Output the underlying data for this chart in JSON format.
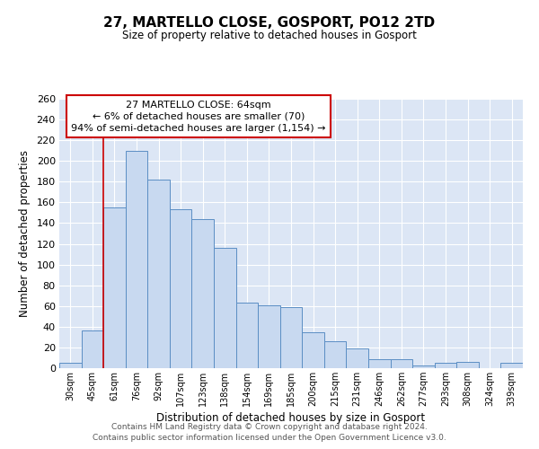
{
  "title": "27, MARTELLO CLOSE, GOSPORT, PO12 2TD",
  "subtitle": "Size of property relative to detached houses in Gosport",
  "xlabel": "Distribution of detached houses by size in Gosport",
  "ylabel": "Number of detached properties",
  "bar_labels": [
    "30sqm",
    "45sqm",
    "61sqm",
    "76sqm",
    "92sqm",
    "107sqm",
    "123sqm",
    "138sqm",
    "154sqm",
    "169sqm",
    "185sqm",
    "200sqm",
    "215sqm",
    "231sqm",
    "246sqm",
    "262sqm",
    "277sqm",
    "293sqm",
    "308sqm",
    "324sqm",
    "339sqm"
  ],
  "bar_values": [
    5,
    36,
    155,
    210,
    182,
    153,
    144,
    116,
    63,
    61,
    59,
    35,
    26,
    19,
    9,
    9,
    3,
    5,
    6,
    0,
    5
  ],
  "bar_color": "#c8d9f0",
  "bar_edge_color": "#5b8ec4",
  "ylim": [
    0,
    260
  ],
  "yticks": [
    0,
    20,
    40,
    60,
    80,
    100,
    120,
    140,
    160,
    180,
    200,
    220,
    240,
    260
  ],
  "vline_x": 2,
  "vline_color": "#cc0000",
  "annotation_title": "27 MARTELLO CLOSE: 64sqm",
  "annotation_line1": "← 6% of detached houses are smaller (70)",
  "annotation_line2": "94% of semi-detached houses are larger (1,154) →",
  "annotation_box_color": "#ffffff",
  "annotation_box_edge": "#cc0000",
  "footer1": "Contains HM Land Registry data © Crown copyright and database right 2024.",
  "footer2": "Contains public sector information licensed under the Open Government Licence v3.0.",
  "fig_background": "#ffffff",
  "plot_background": "#dce6f5"
}
